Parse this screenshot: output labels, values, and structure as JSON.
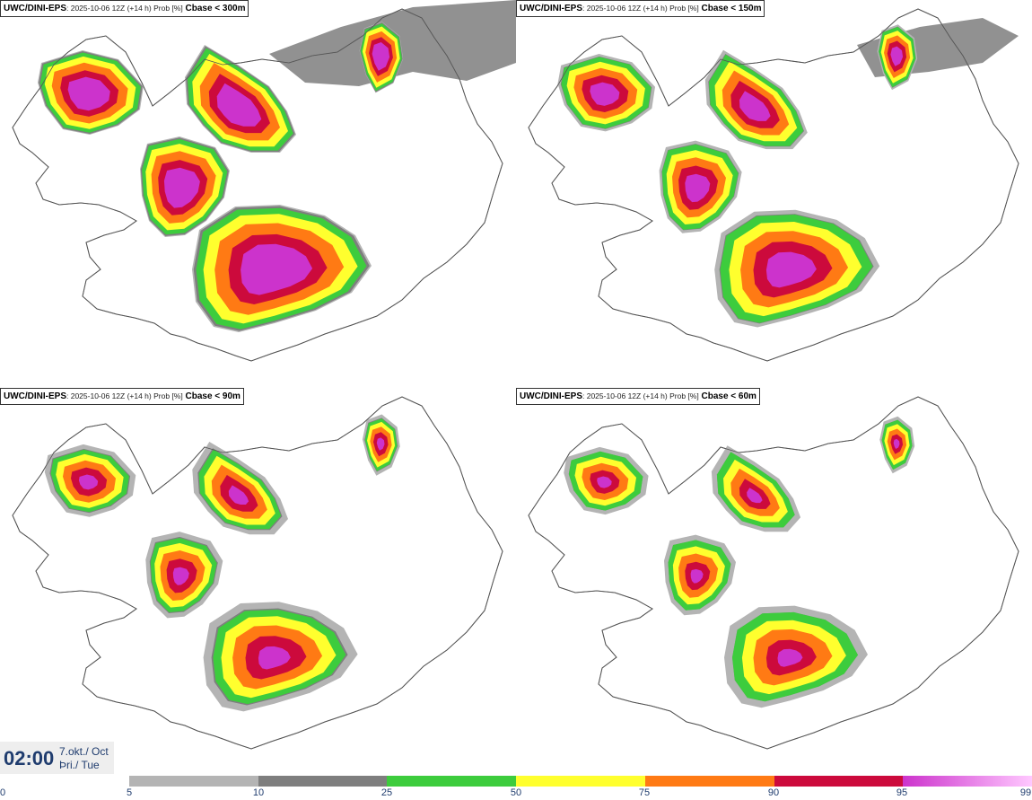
{
  "panels": [
    {
      "model": "UWC/DINI-EPS",
      "meta": ": 2025-10-06 12Z (+14 h) Prob [%]",
      "cbase": "Cbase < 300m"
    },
    {
      "model": "UWC/DINI-EPS",
      "meta": ": 2025-10-06 12Z (+14 h) Prob [%]",
      "cbase": "Cbase < 150m"
    },
    {
      "model": "UWC/DINI-EPS",
      "meta": ": 2025-10-06 12Z (+14 h) Prob [%]",
      "cbase": "Cbase < 90m"
    },
    {
      "model": "UWC/DINI-EPS",
      "meta": ": 2025-10-06 12Z (+14 h) Prob [%]",
      "cbase": "Cbase < 60m"
    }
  ],
  "valid_time": {
    "time": "02:00",
    "date_line1": "7.okt./ Oct",
    "date_line2": "Þri./ Tue"
  },
  "legend": {
    "labels": [
      "0",
      "5",
      "10",
      "25",
      "50",
      "75",
      "90",
      "95",
      "99"
    ],
    "colors": [
      "#b4b4b4",
      "#7e7e7e",
      "#3dcc3d",
      "#ffff2e",
      "#ff7a14",
      "#cc0a3c",
      "#cc33cc"
    ],
    "last_gradient_to": "#ffc8ff"
  },
  "colors": {
    "land_outline": "#555555",
    "p5": "#b4b4b4",
    "p10": "#7e7e7e",
    "p25": "#3dcc3d",
    "p50": "#ffff2e",
    "p75": "#ff7a14",
    "p90": "#cc0a3c",
    "p95": "#cc33cc"
  }
}
